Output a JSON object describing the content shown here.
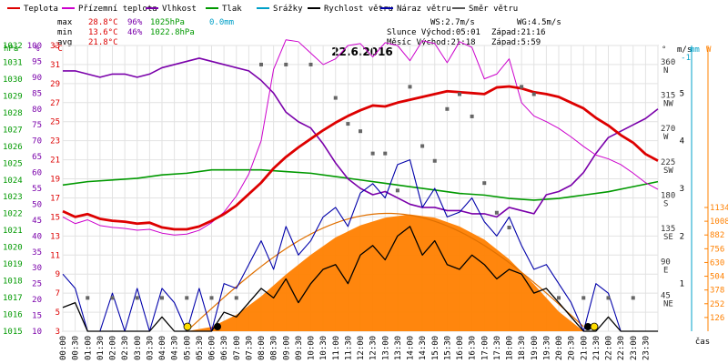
{
  "chart_data": {
    "type": "line",
    "title": "22.6.2016",
    "legend": [
      {
        "label": "Teplota",
        "color": "#dd0000"
      },
      {
        "label": "Přízemní teplota",
        "color": "#cc00cc"
      },
      {
        "label": "Vlhkost",
        "color": "#7a00aa"
      },
      {
        "label": "Tlak",
        "color": "#009900"
      },
      {
        "label": "Srážky",
        "color": "#00a0c8"
      },
      {
        "label": "Rychlost větru",
        "color": "#000000"
      },
      {
        "label": "Náraz větru",
        "color": "#0000aa"
      },
      {
        "label": "Směr větru",
        "color": "#555555"
      }
    ],
    "stats": {
      "max_label": "max",
      "min_label": "min",
      "avg_label": "avg",
      "max_temp": "28.8°C",
      "max_hum": "96%",
      "max_press": "1025hPa",
      "max_rain": "0.0mm",
      "min_temp": "13.6°C",
      "min_hum": "46%",
      "min_press": "1022.8hPa",
      "avg_temp": "21.8°C"
    },
    "wind_info": {
      "ws": "WS:2.7m/s",
      "wg": "WG:4.5m/s",
      "sun": "Slunce Východ:05:01",
      "sun_set": "Západ:21:16",
      "moon": "Měsíc  Východ:21:18",
      "moon_set": "Západ:5:59"
    },
    "left_axes": {
      "hpa_label": "hPa",
      "pct_label": "%",
      "c_label": "°C",
      "hpa_ticks": [
        "1032",
        "1031",
        "1030",
        "1029",
        "1028",
        "1027",
        "1026",
        "1025",
        "1024",
        "1023",
        "1022",
        "1021",
        "1020",
        "1019",
        "1018",
        "1017",
        "1016",
        "1015"
      ],
      "pct_ticks": [
        "100",
        "95",
        "90",
        "85",
        "80",
        "75",
        "70",
        "65",
        "60",
        "55",
        "50",
        "45",
        "40",
        "35",
        "30",
        "25",
        "20",
        "15",
        "10"
      ],
      "c_ticks": [
        "33",
        "31",
        "29",
        "27",
        "25",
        "23",
        "21",
        "19",
        "17",
        "15",
        "13",
        "11",
        "9",
        "7",
        "5",
        "3"
      ]
    },
    "right_axes": {
      "deg_label": "°",
      "ms_label": "m/s",
      "mm_label": "mm",
      "w_label": "W",
      "deg_ticks": [
        {
          "v": "360",
          "d": "N"
        },
        {
          "v": "315",
          "d": "NW"
        },
        {
          "v": "270",
          "d": "W"
        },
        {
          "v": "225",
          "d": "SW"
        },
        {
          "v": "180",
          "d": "S"
        },
        {
          "v": "135",
          "d": "SE"
        },
        {
          "v": "90",
          "d": "E"
        },
        {
          "v": "45",
          "d": "NE"
        }
      ],
      "ms_ticks": [
        "5",
        "4",
        "3",
        "2",
        "1"
      ],
      "mm_ticks": [
        "-1"
      ],
      "w_ticks": [
        "1134",
        "1008",
        "882",
        "756",
        "630",
        "504",
        "378",
        "252",
        "126"
      ]
    },
    "x_ticks": [
      "00:00",
      "00:30",
      "01:00",
      "01:30",
      "02:00",
      "02:30",
      "03:00",
      "03:30",
      "04:00",
      "04:30",
      "05:00",
      "05:30",
      "06:00",
      "06:30",
      "07:00",
      "07:30",
      "08:00",
      "08:30",
      "09:00",
      "09:30",
      "10:00",
      "10:30",
      "11:00",
      "11:30",
      "12:00",
      "12:30",
      "13:00",
      "13:30",
      "14:00",
      "14:30",
      "15:00",
      "15:30",
      "16:00",
      "16:30",
      "17:00",
      "17:30",
      "18:00",
      "18:30",
      "19:00",
      "19:30",
      "20:00",
      "20:30",
      "21:00",
      "21:30",
      "22:00",
      "22:30",
      "23:00",
      "23:30"
    ],
    "x_label": "čas",
    "xlim": [
      0,
      24
    ],
    "temp_ylim": [
      3,
      33
    ],
    "series": [
      {
        "name": "Teplota",
        "unit": "°C",
        "x": [
          0,
          0.5,
          1,
          1.5,
          2,
          2.5,
          3,
          3.5,
          4,
          4.5,
          5,
          5.5,
          6,
          6.5,
          7,
          7.5,
          8,
          8.5,
          9,
          9.5,
          10,
          10.5,
          11,
          11.5,
          12,
          12.5,
          13,
          13.5,
          14,
          14.5,
          15,
          15.5,
          16,
          16.5,
          17,
          17.5,
          18,
          18.5,
          19,
          19.5,
          20,
          20.5,
          21,
          21.5,
          22,
          22.5,
          23,
          23.5,
          24
        ],
        "values": [
          15.6,
          15.0,
          15.3,
          14.8,
          14.6,
          14.5,
          14.3,
          14.4,
          13.9,
          13.7,
          13.7,
          14.0,
          14.6,
          15.3,
          16.2,
          17.4,
          18.6,
          20.1,
          21.3,
          22.3,
          23.2,
          24.1,
          24.9,
          25.6,
          26.2,
          26.7,
          26.6,
          27.0,
          27.3,
          27.6,
          27.9,
          28.2,
          28.1,
          28.0,
          27.9,
          28.6,
          28.7,
          28.5,
          28.1,
          27.9,
          27.6,
          27.0,
          26.4,
          25.4,
          24.6,
          23.6,
          22.8,
          21.6,
          20.9
        ]
      },
      {
        "name": "Přízemní teplota",
        "unit": "°C",
        "x": [
          0,
          0.5,
          1,
          1.5,
          2,
          2.5,
          3,
          3.5,
          4,
          4.5,
          5,
          5.5,
          6,
          6.5,
          7,
          7.5,
          8,
          8.5,
          9,
          9.5,
          10,
          10.5,
          11,
          11.5,
          12,
          12.5,
          13,
          13.5,
          14,
          14.5,
          15,
          15.5,
          16,
          16.5,
          17,
          17.5,
          18,
          18.5,
          19,
          19.5,
          20,
          20.5,
          21,
          21.5,
          22,
          22.5,
          23,
          23.5,
          24
        ],
        "values": [
          15.0,
          14.3,
          14.7,
          14.1,
          13.9,
          13.8,
          13.6,
          13.7,
          13.3,
          13.1,
          13.2,
          13.6,
          14.4,
          15.5,
          17.2,
          19.5,
          23.0,
          30.5,
          33.6,
          33.4,
          32.2,
          31.0,
          31.6,
          33.0,
          33.2,
          31.8,
          33.3,
          33.0,
          31.4,
          33.5,
          33.2,
          31.2,
          33.4,
          32.8,
          29.5,
          30.0,
          31.6,
          27.0,
          25.6,
          25.0,
          24.3,
          23.4,
          22.4,
          21.5,
          21.1,
          20.5,
          19.6,
          18.6,
          17.9
        ]
      },
      {
        "name": "Vlhkost",
        "unit": "%",
        "x": [
          0,
          0.5,
          1,
          1.5,
          2,
          2.5,
          3,
          3.5,
          4,
          4.5,
          5,
          5.5,
          6,
          6.5,
          7,
          7.5,
          8,
          8.5,
          9,
          9.5,
          10,
          10.5,
          11,
          11.5,
          12,
          12.5,
          13,
          13.5,
          14,
          14.5,
          15,
          15.5,
          16,
          16.5,
          17,
          17.5,
          18,
          18.5,
          19,
          19.5,
          20,
          20.5,
          21,
          21.5,
          22,
          22.5,
          23,
          23.5,
          24
        ],
        "values": [
          92,
          92,
          91,
          90,
          91,
          91,
          90,
          91,
          93,
          94,
          95,
          96,
          95,
          94,
          93,
          92,
          89,
          85,
          79,
          76,
          74,
          69,
          63,
          58,
          55,
          53,
          54,
          52,
          50,
          49,
          49,
          48,
          48,
          47,
          47,
          46,
          49,
          48,
          47,
          53,
          54,
          56,
          60,
          66,
          71,
          73,
          75,
          77,
          80
        ]
      },
      {
        "name": "Tlak",
        "unit": "hPa",
        "x": [
          0,
          1,
          2,
          3,
          4,
          5,
          6,
          7,
          8,
          9,
          10,
          11,
          12,
          13,
          14,
          15,
          16,
          17,
          18,
          19,
          20,
          21,
          22,
          23,
          24
        ],
        "values": [
          1023.7,
          1023.9,
          1024.0,
          1024.1,
          1024.3,
          1024.4,
          1024.6,
          1024.6,
          1024.6,
          1024.5,
          1024.4,
          1024.2,
          1024.0,
          1023.8,
          1023.6,
          1023.4,
          1023.2,
          1023.1,
          1022.9,
          1022.8,
          1022.9,
          1023.1,
          1023.3,
          1023.6,
          1023.9
        ]
      },
      {
        "name": "Rychlost větru",
        "unit": "m/s",
        "x": [
          0,
          0.5,
          1,
          1.5,
          2,
          2.5,
          3,
          3.5,
          4,
          4.5,
          5,
          5.5,
          6,
          6.5,
          7,
          7.5,
          8,
          8.5,
          9,
          9.5,
          10,
          10.5,
          11,
          11.5,
          12,
          12.5,
          13,
          13.5,
          14,
          14.5,
          15,
          15.5,
          16,
          16.5,
          17,
          17.5,
          18,
          18.5,
          19,
          19.5,
          20,
          20.5,
          21,
          21.5,
          22,
          22.5,
          23,
          23.5,
          24
        ],
        "values": [
          0.5,
          0.6,
          0,
          0,
          0,
          0,
          0,
          0,
          0.3,
          0,
          0,
          0,
          0,
          0.4,
          0.3,
          0.6,
          0.9,
          0.7,
          1.1,
          0.6,
          1.0,
          1.3,
          1.4,
          1.0,
          1.6,
          1.8,
          1.5,
          2.0,
          2.2,
          1.6,
          1.9,
          1.4,
          1.3,
          1.6,
          1.4,
          1.1,
          1.3,
          1.2,
          0.8,
          0.9,
          0.6,
          0.3,
          0,
          0,
          0.3,
          0,
          0,
          0,
          0
        ]
      },
      {
        "name": "Náraz větru",
        "unit": "m/s",
        "x": [
          0,
          0.5,
          1,
          1.5,
          2,
          2.5,
          3,
          3.5,
          4,
          4.5,
          5,
          5.5,
          6,
          6.5,
          7,
          7.5,
          8,
          8.5,
          9,
          9.5,
          10,
          10.5,
          11,
          11.5,
          12,
          12.5,
          13,
          13.5,
          14,
          14.5,
          15,
          15.5,
          16,
          16.5,
          17,
          17.5,
          18,
          18.5,
          19,
          19.5,
          20,
          20.5,
          21,
          21.5,
          22,
          22.5,
          23,
          23.5,
          24
        ],
        "values": [
          1.2,
          0.9,
          0,
          0,
          0.8,
          0,
          0.9,
          0,
          0.9,
          0.6,
          0,
          0.9,
          0,
          1.0,
          0.9,
          1.4,
          1.9,
          1.3,
          2.2,
          1.6,
          1.9,
          2.4,
          2.6,
          2.2,
          2.9,
          3.1,
          2.8,
          3.5,
          3.6,
          2.6,
          3.0,
          2.4,
          2.5,
          2.8,
          2.3,
          2.0,
          2.4,
          1.8,
          1.3,
          1.4,
          1.0,
          0.6,
          0,
          1.0,
          0.8,
          0,
          0,
          0,
          0
        ]
      },
      {
        "name": "Směr větru",
        "unit": "°",
        "x": [
          1,
          2,
          3,
          4,
          5,
          6,
          7,
          8,
          9,
          10,
          11,
          11.5,
          12,
          12.5,
          13,
          13.5,
          14,
          14.5,
          15,
          15.5,
          16,
          16.5,
          17,
          17.5,
          18,
          18.5,
          19,
          20,
          21,
          22,
          23
        ],
        "values": [
          45,
          45,
          45,
          45,
          45,
          45,
          45,
          360,
          360,
          360,
          315,
          280,
          270,
          240,
          240,
          190,
          330,
          250,
          230,
          300,
          320,
          290,
          200,
          160,
          140,
          330,
          320,
          45,
          45,
          45,
          45
        ]
      },
      {
        "name": "Solar",
        "unit": "W",
        "x": [
          5,
          6,
          7,
          8,
          9,
          10,
          11,
          12,
          13,
          14,
          15,
          16,
          17,
          18,
          19,
          20,
          21
        ],
        "values": [
          0,
          40,
          150,
          320,
          520,
          700,
          860,
          970,
          1040,
          1070,
          1040,
          960,
          840,
          660,
          430,
          180,
          0
        ]
      }
    ]
  }
}
